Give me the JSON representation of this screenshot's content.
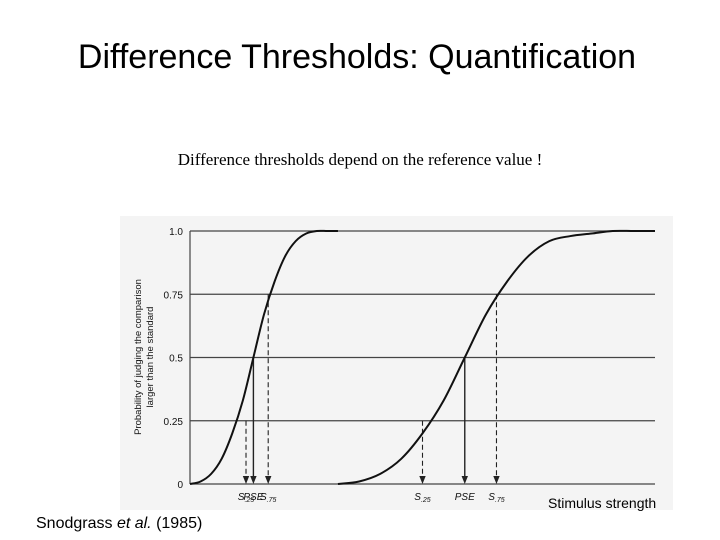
{
  "slide": {
    "title": "Difference Thresholds: Quantification",
    "subtitle": "Difference thresholds depend on the reference value !",
    "citation_author": "Snodgrass ",
    "citation_etal": "et al.",
    "citation_year": " (1985)"
  },
  "chart_data": {
    "type": "line",
    "title": "",
    "xlabel": "Stimulus strength",
    "ylabel": "Probability of judging the comparison larger than the standard",
    "ylim": [
      0,
      1
    ],
    "y_ticks": [
      "0",
      "0.25",
      "0.5",
      "0.75",
      "1.0"
    ],
    "y_tick_values": [
      0,
      0.25,
      0.5,
      0.75,
      1.0
    ],
    "grid": "horizontal",
    "colors": {
      "background": "#f4f4f4",
      "line": "#111111",
      "grid": "#444444"
    },
    "x_tick_labels": [
      {
        "main": "S",
        "sub": ".25"
      },
      {
        "main": "PSE",
        "sub": ""
      },
      {
        "main": "S",
        "sub": ".75"
      },
      {
        "main": "S",
        "sub": ".25"
      },
      {
        "main": "PSE",
        "sub": ""
      },
      {
        "main": "S",
        "sub": ".75"
      }
    ],
    "series": [
      {
        "x": [
          0,
          5,
          10,
          15,
          20,
          25,
          30,
          35,
          40,
          45,
          50,
          55,
          60,
          65,
          70
        ],
        "values": [
          0,
          0.01,
          0.04,
          0.1,
          0.2,
          0.33,
          0.5,
          0.67,
          0.8,
          0.9,
          0.96,
          0.99,
          1.0,
          1.0,
          1.0
        ],
        "thresholds": {
          "s25": 26.5,
          "pse": 30,
          "s75": 37
        }
      },
      {
        "x": [
          70,
          80,
          90,
          100,
          110,
          120,
          130,
          140,
          150,
          160,
          170,
          180,
          190,
          200,
          210,
          220
        ],
        "values": [
          0,
          0.01,
          0.04,
          0.1,
          0.2,
          0.33,
          0.5,
          0.67,
          0.8,
          0.9,
          0.96,
          0.98,
          0.99,
          1.0,
          1.0,
          1.0
        ],
        "thresholds": {
          "s25": 110,
          "pse": 130,
          "s75": 145
        }
      }
    ]
  }
}
